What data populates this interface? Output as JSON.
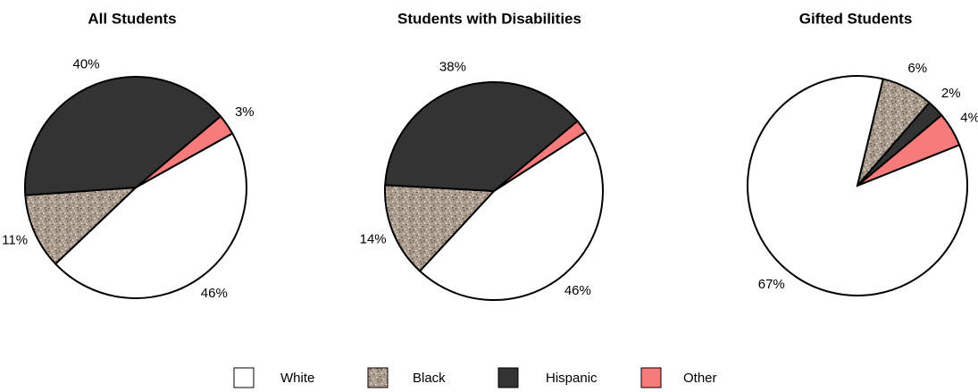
{
  "chart_data": [
    {
      "type": "pie",
      "title": "All Students",
      "categories": [
        "White",
        "Black",
        "Hispanic",
        "Other"
      ],
      "values": [
        46,
        11,
        40,
        3
      ],
      "value_labels": [
        "46%",
        "11%",
        "40%",
        "3%"
      ],
      "colors": [
        "#ffffff",
        "#a99b8e",
        "#333333",
        "#f87b7b"
      ]
    },
    {
      "type": "pie",
      "title": "Students with Disabilities",
      "categories": [
        "White",
        "Black",
        "Hispanic",
        "Other"
      ],
      "values": [
        46,
        14,
        38,
        2
      ],
      "value_labels": [
        "46%",
        "14%",
        "38%",
        null
      ],
      "colors": [
        "#ffffff",
        "#a99b8e",
        "#333333",
        "#f87b7b"
      ]
    },
    {
      "type": "pie",
      "title": "Gifted Students",
      "categories": [
        "White",
        "Black",
        "Hispanic",
        "Other"
      ],
      "values": [
        67,
        6,
        2,
        4
      ],
      "value_labels": [
        "67%",
        "6%",
        "2%",
        "4%"
      ],
      "colors": [
        "#ffffff",
        "#a99b8e",
        "#333333",
        "#f87b7b"
      ]
    }
  ]
}
